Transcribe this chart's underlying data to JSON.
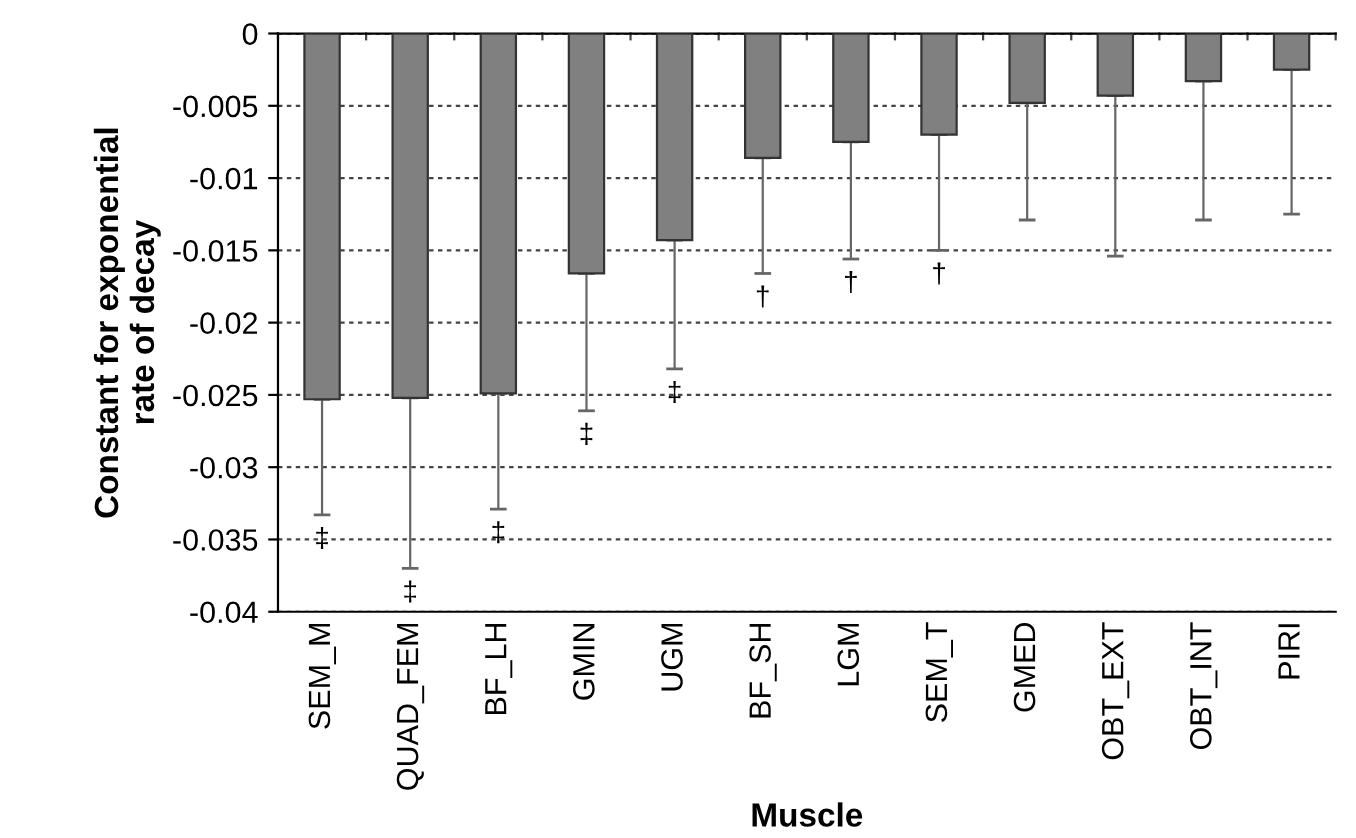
{
  "chart_data": {
    "type": "bar",
    "xlabel": "Muscle",
    "ylabel": "Constant for exponential\nrate of decay",
    "categories": [
      "SEM_M",
      "QUAD_FEM",
      "BF_LH",
      "GMIN",
      "UGM",
      "BF_SH",
      "LGM",
      "SEM_T",
      "GMED",
      "OBT_EXT",
      "OBT_INT",
      "PIRI"
    ],
    "values": [
      -0.0253,
      -0.0252,
      -0.0249,
      -0.0166,
      -0.0143,
      -0.0086,
      -0.0075,
      -0.007,
      -0.0048,
      -0.0043,
      -0.0033,
      -0.0025
    ],
    "errors": [
      [
        -0.0333,
        -0.0253
      ],
      [
        -0.037,
        -0.0252
      ],
      [
        -0.0329,
        -0.0249
      ],
      [
        -0.0261,
        -0.0166
      ],
      [
        -0.0232,
        -0.0143
      ],
      [
        -0.0166,
        -0.0086
      ],
      [
        -0.0156,
        -0.0075
      ],
      [
        -0.015,
        -0.007
      ],
      [
        -0.0129,
        -0.0048
      ],
      [
        -0.0154,
        -0.0043
      ],
      [
        -0.0129,
        -0.0033
      ],
      [
        -0.0125,
        -0.0025
      ]
    ],
    "color": "#808080",
    "ylim": [
      -0.04,
      0
    ],
    "yticks": [
      -0.04,
      -0.035,
      -0.03,
      -0.025,
      -0.02,
      -0.015,
      -0.01,
      -0.005,
      0
    ],
    "grid": "y",
    "annotations": [
      "‡",
      "‡",
      "‡",
      "‡",
      "‡",
      "†",
      "†",
      "†"
    ]
  }
}
